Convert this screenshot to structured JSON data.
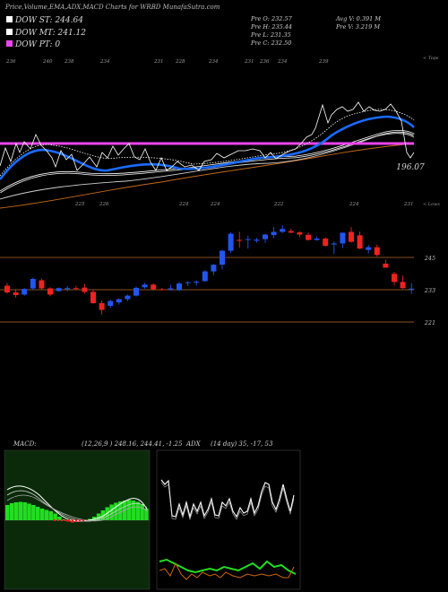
{
  "header": {
    "title": "Price,Volume,EMA,ADX,MACD Charts for WRBD MunafaSutra.com",
    "legend": [
      {
        "label": "DOW ST: 244.64",
        "color": "#ffffff"
      },
      {
        "label": "DOW MT: 241.12",
        "color": "#ffffff"
      },
      {
        "label": "DOW PT: 0",
        "color": "#ee44ee"
      }
    ],
    "stats": {
      "pre_o": "Pre  O: 232.57",
      "pre_h": "Pre  H: 235.44",
      "pre_l": "Pre  L: 231.35",
      "pre_c": "Pre  C: 232.50",
      "avg_v": "Avg V: 0.391 M",
      "pre_v": "Pre  V: 3.219 M"
    }
  },
  "colors": {
    "bg": "#000000",
    "up": "#2255ee",
    "down": "#ee2222",
    "ema_fast": "#1a6bff",
    "dow_pt": "#ee44ee",
    "level": "#b9692d",
    "macd_panel": "#0a2a0a",
    "macd_hist": "#22dd22",
    "adx_green": "#22dd22",
    "adx_orange": "#cc6610"
  },
  "chart_data": [
    {
      "type": "candlestick",
      "title": "Price,Volume,EMA,ADX,MACD Charts for WRBD MunafaSutra.com",
      "ylim": [
        214,
        262
      ],
      "levels": [
        {
          "label": "245",
          "value": 245
        },
        {
          "label": "233",
          "value": 233
        },
        {
          "label": "221",
          "value": 221
        }
      ],
      "dow_pt_level": 0,
      "top_axis_labels": [
        "236",
        "240",
        "238",
        "234",
        "231",
        "228",
        "234",
        "231",
        "236",
        "234",
        "239"
      ],
      "top_axis_tag": "< Tops",
      "low_axis_labels": [
        "225",
        "226",
        "224",
        "224",
        "222",
        "224",
        "231"
      ],
      "low_axis_tag": "< Lows",
      "ema_tag": "196.07",
      "candles": [
        [
          234.5,
          235.5,
          231.5,
          232
        ],
        [
          232,
          233.2,
          230.1,
          231
        ],
        [
          231.2,
          233.6,
          230.8,
          233.3
        ],
        [
          233.5,
          237.5,
          232.9,
          237
        ],
        [
          236.5,
          237.2,
          233.1,
          233.5
        ],
        [
          233.5,
          233.9,
          230.6,
          231.2
        ],
        [
          232.5,
          233.8,
          232.3,
          233.6
        ],
        [
          233.2,
          234.3,
          232.5,
          233.6
        ],
        [
          233.6,
          234.5,
          232.8,
          233.5
        ],
        [
          233.8,
          235.2,
          231.6,
          232.2
        ],
        [
          232.2,
          233,
          227.8,
          228
        ],
        [
          228,
          229,
          223.8,
          225.5
        ],
        [
          227,
          229.3,
          226.3,
          228.8
        ],
        [
          228.3,
          229.8,
          227.5,
          229.5
        ],
        [
          229.5,
          231.2,
          228.8,
          230.8
        ],
        [
          230.8,
          234.2,
          230.5,
          233.7
        ],
        [
          233.9,
          235.6,
          233.4,
          234.9
        ],
        [
          234.9,
          235.3,
          232.7,
          233.2
        ],
        [
          233.2,
          233.6,
          232.7,
          233.1
        ],
        [
          233.5,
          234.8,
          232.7,
          233.5
        ],
        [
          232.8,
          235.9,
          232.5,
          235.3
        ],
        [
          235.5,
          236.2,
          234.4,
          235.8
        ],
        [
          236,
          236.5,
          234.5,
          236
        ],
        [
          236.2,
          240.3,
          235.9,
          239.8
        ],
        [
          239.8,
          242.5,
          238.4,
          242.3
        ],
        [
          242.3,
          247.8,
          240.6,
          247.5
        ],
        [
          247.5,
          254.4,
          246.7,
          253.8
        ],
        [
          251.5,
          254.5,
          248.6,
          251.2
        ],
        [
          251.5,
          253.1,
          248.3,
          251.8
        ],
        [
          251.2,
          252.3,
          250.5,
          251.6
        ],
        [
          251.8,
          253.8,
          250.4,
          253.5
        ],
        [
          253.3,
          256.3,
          252.1,
          254.5
        ],
        [
          254.5,
          257,
          254.1,
          255.6
        ],
        [
          254.8,
          255.6,
          254.1,
          254.2
        ],
        [
          254.3,
          254.7,
          252.5,
          253.5
        ],
        [
          253.4,
          254.2,
          251.3,
          251.5
        ],
        [
          251.5,
          252.8,
          251.2,
          252
        ],
        [
          252,
          252.5,
          249.1,
          249.3
        ],
        [
          249.8,
          250.9,
          246.3,
          250.2
        ],
        [
          250.2,
          254.2,
          248.5,
          254.2
        ],
        [
          254.5,
          256.3,
          250.5,
          250.8
        ],
        [
          253.2,
          254.6,
          248.1,
          248.3
        ],
        [
          247.8,
          249.6,
          246.5,
          248.8
        ],
        [
          248.8,
          249.8,
          245.4,
          245.9
        ],
        [
          242.7,
          244.2,
          241.2,
          241.2
        ],
        [
          238.9,
          239.6,
          234.6,
          235.9
        ],
        [
          235.9,
          238.3,
          233.3,
          233.6
        ],
        [
          233.1,
          235.4,
          231.4,
          233.4
        ]
      ]
    },
    {
      "type": "line",
      "name": "MACD",
      "label": "MACD:",
      "params": "(12,26,9 ) 248.16, 244.41, -1.25",
      "histogram": [
        3.4,
        3.8,
        4,
        4.1,
        4,
        3.7,
        3.4,
        3,
        2.6,
        2.3,
        2,
        1.5,
        0.8,
        0.2,
        -0.3,
        -0.5,
        -0.4,
        -0.3,
        -0.1,
        0.3,
        0.8,
        1.5,
        2.2,
        2.9,
        3.5,
        3.9,
        4.2,
        4.4,
        4.5,
        4.4,
        4.1,
        3.6,
        2.6
      ]
    },
    {
      "type": "line",
      "name": "ADX",
      "label": "ADX",
      "params": "(14 day) 35, -17, 53"
    }
  ]
}
